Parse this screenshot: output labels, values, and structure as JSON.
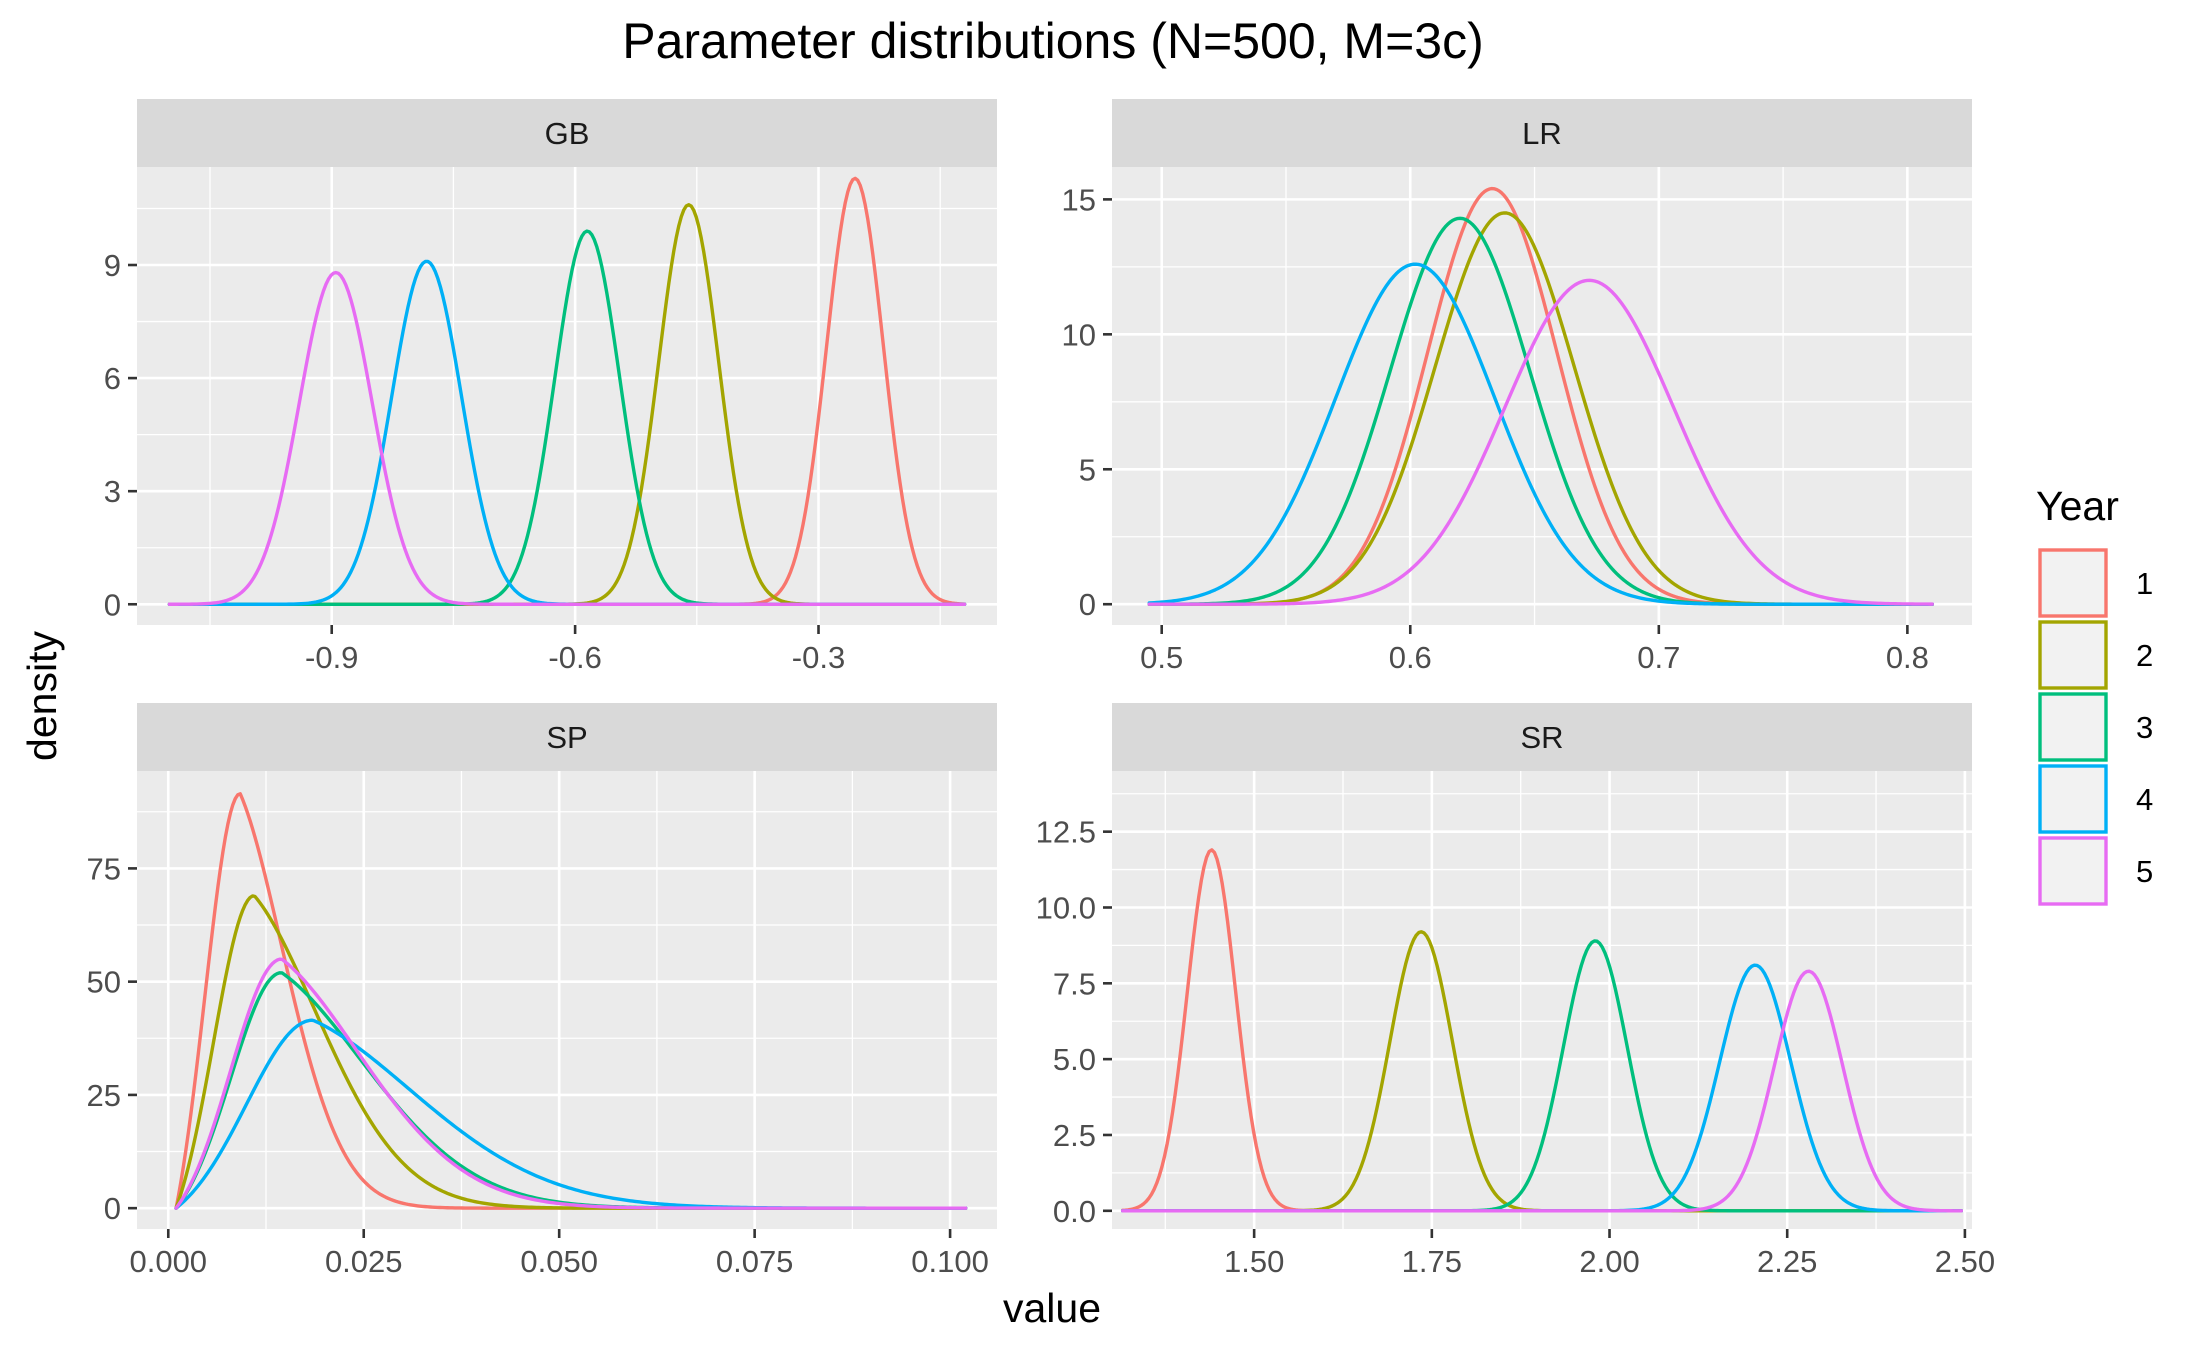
{
  "chart_data": {
    "type": "line",
    "title": "Parameter distributions (N=500, M=3c)",
    "xlabel": "value",
    "ylabel": "density",
    "legend": {
      "title": "Year",
      "placement": "right",
      "entries": [
        "1",
        "2",
        "3",
        "4",
        "5"
      ]
    },
    "colors": {
      "1": "#F8766D",
      "2": "#A3A500",
      "3": "#00BF7D",
      "4": "#00B0F6",
      "5": "#E76BF3"
    },
    "grid": true,
    "panels": [
      {
        "name": "GB",
        "xlim": [
          -1.14,
          -0.08
        ],
        "ylim": [
          -0.55,
          11.6
        ],
        "x_ticks": [
          -0.9,
          -0.6,
          -0.3
        ],
        "x_tick_labels": [
          "-0.9",
          "-0.6",
          "-0.3"
        ],
        "y_ticks": [
          0,
          3,
          6,
          9
        ],
        "y_tick_labels": [
          "0",
          "3",
          "6",
          "9"
        ],
        "series": [
          {
            "name": "1",
            "type": "gauss",
            "mean": -0.255,
            "sd": 0.035,
            "peak": 11.3,
            "xmin": -1.1,
            "xmax": -0.12
          },
          {
            "name": "2",
            "type": "gauss",
            "mean": -0.46,
            "sd": 0.037,
            "peak": 10.6,
            "xmin": -1.1,
            "xmax": -0.12
          },
          {
            "name": "3",
            "type": "gauss",
            "mean": -0.585,
            "sd": 0.04,
            "peak": 9.9,
            "xmin": -1.1,
            "xmax": -0.12
          },
          {
            "name": "4",
            "type": "gauss",
            "mean": -0.783,
            "sd": 0.043,
            "peak": 9.1,
            "xmin": -1.1,
            "xmax": -0.12
          },
          {
            "name": "5",
            "type": "gauss",
            "mean": -0.895,
            "sd": 0.045,
            "peak": 8.8,
            "xmin": -1.1,
            "xmax": -0.12
          }
        ]
      },
      {
        "name": "LR",
        "xlim": [
          0.48,
          0.826
        ],
        "ylim": [
          -0.77,
          16.2
        ],
        "x_ticks": [
          0.5,
          0.6,
          0.7,
          0.8
        ],
        "x_tick_labels": [
          "0.5",
          "0.6",
          "0.7",
          "0.8"
        ],
        "y_ticks": [
          0,
          5,
          10,
          15
        ],
        "y_tick_labels": [
          "0",
          "5",
          "10",
          "15"
        ],
        "series": [
          {
            "name": "1",
            "type": "gauss",
            "mean": 0.633,
            "sd": 0.026,
            "peak": 15.4,
            "xmin": 0.495,
            "xmax": 0.81
          },
          {
            "name": "2",
            "type": "gauss",
            "mean": 0.638,
            "sd": 0.028,
            "peak": 14.5,
            "xmin": 0.495,
            "xmax": 0.81
          },
          {
            "name": "3",
            "type": "gauss",
            "mean": 0.62,
            "sd": 0.028,
            "peak": 14.3,
            "xmin": 0.495,
            "xmax": 0.81
          },
          {
            "name": "4",
            "type": "gauss",
            "mean": 0.602,
            "sd": 0.032,
            "peak": 12.6,
            "xmin": 0.495,
            "xmax": 0.81
          },
          {
            "name": "5",
            "type": "gauss",
            "mean": 0.672,
            "sd": 0.034,
            "peak": 12.0,
            "xmin": 0.495,
            "xmax": 0.81
          }
        ]
      },
      {
        "name": "SP",
        "xlim": [
          -0.004,
          0.106
        ],
        "ylim": [
          -4.6,
          96.5
        ],
        "x_ticks": [
          0.0,
          0.025,
          0.05,
          0.075,
          0.1
        ],
        "x_tick_labels": [
          "0.000",
          "0.025",
          "0.050",
          "0.075",
          "0.100"
        ],
        "y_ticks": [
          0,
          25,
          50,
          75
        ],
        "y_tick_labels": [
          "0",
          "25",
          "50",
          "75"
        ],
        "series": [
          {
            "name": "1",
            "type": "skew",
            "start": 0.001,
            "mode": 0.0092,
            "rise": 0.0045,
            "decay": 0.0058,
            "peak": 91.5,
            "xmin": 0.001,
            "xmax": 0.102
          },
          {
            "name": "2",
            "type": "skew",
            "start": 0.001,
            "mode": 0.011,
            "rise": 0.0052,
            "decay": 0.0085,
            "peak": 69.0,
            "xmin": 0.001,
            "xmax": 0.102
          },
          {
            "name": "3",
            "type": "skew",
            "start": 0.001,
            "mode": 0.0145,
            "rise": 0.0065,
            "decay": 0.011,
            "peak": 52.0,
            "xmin": 0.001,
            "xmax": 0.102
          },
          {
            "name": "4",
            "type": "skew",
            "start": 0.001,
            "mode": 0.0185,
            "rise": 0.0085,
            "decay": 0.0135,
            "peak": 41.5,
            "xmin": 0.001,
            "xmax": 0.102
          },
          {
            "name": "5",
            "type": "skew",
            "start": 0.001,
            "mode": 0.0145,
            "rise": 0.0065,
            "decay": 0.0105,
            "peak": 55.0,
            "xmin": 0.001,
            "xmax": 0.102
          }
        ]
      },
      {
        "name": "SR",
        "xlim": [
          1.3,
          2.51
        ],
        "ylim": [
          -0.6,
          14.5
        ],
        "x_ticks": [
          1.5,
          1.75,
          2.0,
          2.25,
          2.5
        ],
        "x_tick_labels": [
          "1.50",
          "1.75",
          "2.00",
          "2.25",
          "2.50"
        ],
        "y_ticks": [
          0,
          2.5,
          5,
          7.5,
          10,
          12.5
        ],
        "y_tick_labels": [
          "0.0",
          "2.5",
          "5.0",
          "7.5",
          "10.0",
          "12.5"
        ],
        "series": [
          {
            "name": "1",
            "type": "gauss",
            "mean": 1.44,
            "sd": 0.034,
            "peak": 11.9,
            "xmin": 1.315,
            "xmax": 2.495
          },
          {
            "name": "2",
            "type": "gauss",
            "mean": 1.735,
            "sd": 0.044,
            "peak": 9.2,
            "xmin": 1.315,
            "xmax": 2.495
          },
          {
            "name": "3",
            "type": "gauss",
            "mean": 1.98,
            "sd": 0.045,
            "peak": 8.9,
            "xmin": 1.315,
            "xmax": 2.495
          },
          {
            "name": "4",
            "type": "gauss",
            "mean": 2.205,
            "sd": 0.05,
            "peak": 8.1,
            "xmin": 1.315,
            "xmax": 2.495
          },
          {
            "name": "5",
            "type": "gauss",
            "mean": 2.28,
            "sd": 0.048,
            "peak": 7.9,
            "xmin": 1.315,
            "xmax": 2.495
          }
        ]
      }
    ]
  }
}
